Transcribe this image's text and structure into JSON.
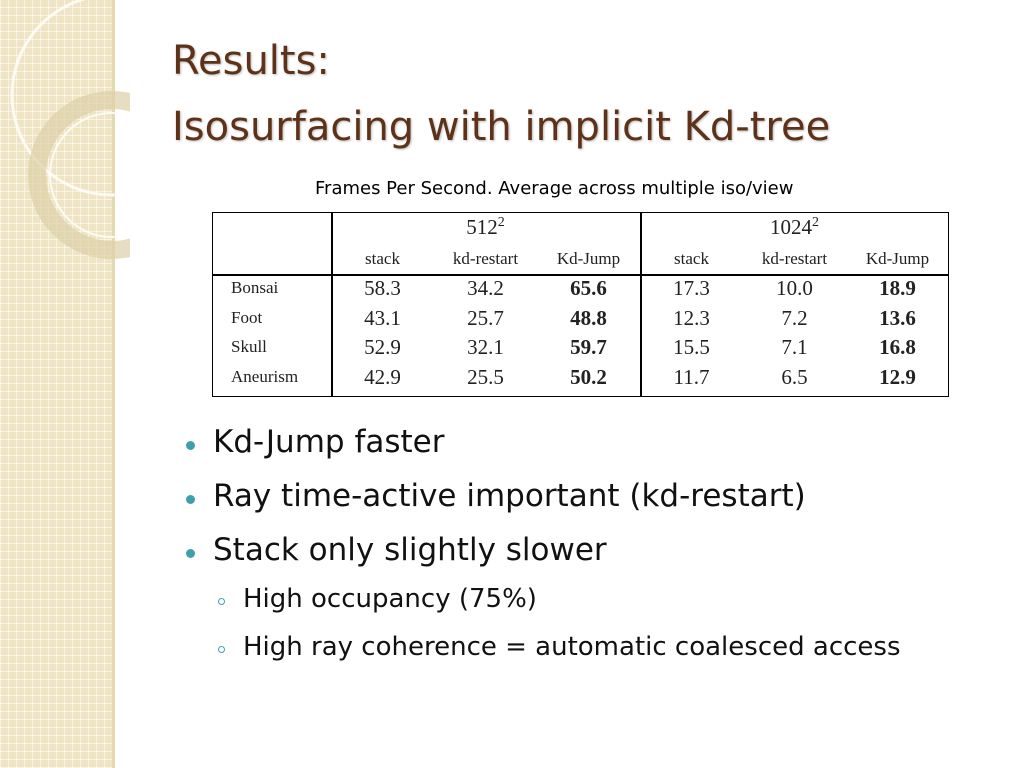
{
  "title": [
    "Results:",
    "Isosurfacing with implicit Kd-tree"
  ],
  "caption": "Frames Per Second. Average across multiple iso/view",
  "table": {
    "groups": [
      {
        "base": "512",
        "exp": "2"
      },
      {
        "base": "1024",
        "exp": "2"
      }
    ],
    "columns": [
      "stack",
      "kd-restart",
      "Kd-Jump",
      "stack",
      "kd-restart",
      "Kd-Jump"
    ],
    "rows": [
      [
        "Bonsai",
        "58.3",
        "34.2",
        "65.6",
        "17.3",
        "10.0",
        "18.9"
      ],
      [
        "Foot",
        "43.1",
        "25.7",
        "48.8",
        "12.3",
        "7.2",
        "13.6"
      ],
      [
        "Skull",
        "52.9",
        "32.1",
        "59.7",
        "15.5",
        "7.1",
        "16.8"
      ],
      [
        "Aneurism",
        "42.9",
        "25.5",
        "50.2",
        "11.7",
        "6.5",
        "12.9"
      ]
    ]
  },
  "bullets": [
    {
      "text": "Kd-Jump faster"
    },
    {
      "text": "Ray time-active important (kd-restart)"
    },
    {
      "text": "Stack only slightly slower",
      "sub": [
        "High occupancy (75%)",
        "High ray coherence = automatic coalesced access"
      ]
    }
  ]
}
